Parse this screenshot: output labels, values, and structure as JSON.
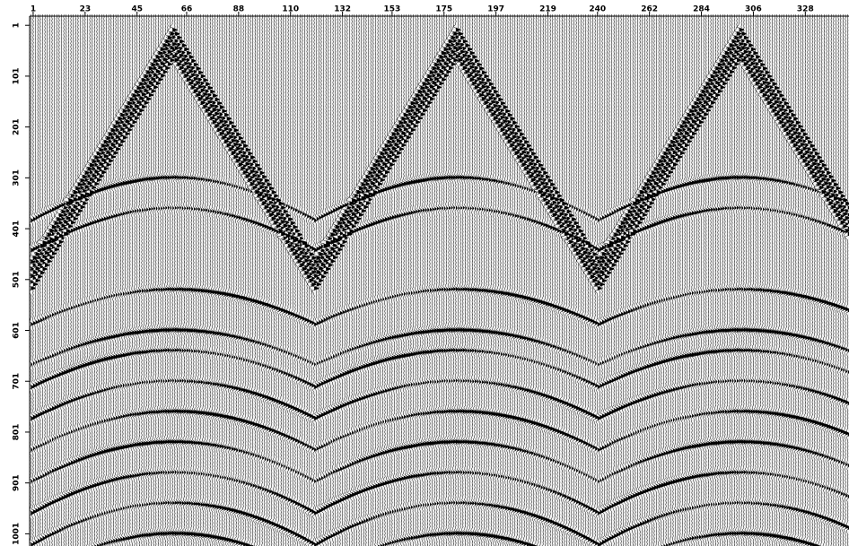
{
  "chart_data": {
    "type": "seismic",
    "xlim": [
      -0.5,
      346.5
    ],
    "xticks": [
      1,
      23,
      45,
      66,
      88,
      110,
      132,
      153,
      175,
      197,
      219,
      240,
      262,
      284,
      306,
      328
    ],
    "ylim": [
      -17,
      1025
    ],
    "yticks": [
      1,
      101,
      201,
      301,
      401,
      501,
      601,
      701,
      801,
      901,
      1001
    ]
  }
}
